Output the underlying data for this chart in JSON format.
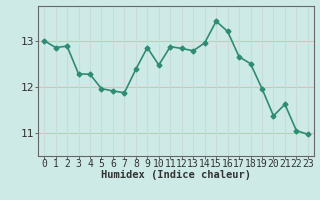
{
  "x": [
    0,
    1,
    2,
    3,
    4,
    5,
    6,
    7,
    8,
    9,
    10,
    11,
    12,
    13,
    14,
    15,
    16,
    17,
    18,
    19,
    20,
    21,
    22,
    23
  ],
  "y": [
    13.0,
    12.85,
    12.88,
    12.28,
    12.27,
    11.96,
    11.91,
    11.87,
    12.38,
    12.85,
    12.47,
    12.87,
    12.83,
    12.78,
    12.95,
    13.42,
    13.2,
    12.65,
    12.5,
    11.96,
    11.37,
    11.62,
    11.05,
    10.97
  ],
  "line_color": "#2e8b74",
  "marker": "D",
  "marker_size": 2.5,
  "bg_color": "#ceeae7",
  "grid_color_v": "#c8dbd8",
  "grid_color_h": "#e8b8b8",
  "axis_color": "#888888",
  "xlabel": "Humidex (Indice chaleur)",
  "xlabel_fontsize": 7.5,
  "tick_fontsize": 7,
  "yticks": [
    11,
    12,
    13
  ],
  "ylim": [
    10.5,
    13.75
  ],
  "xlim": [
    -0.5,
    23.5
  ],
  "linewidth": 1.2
}
